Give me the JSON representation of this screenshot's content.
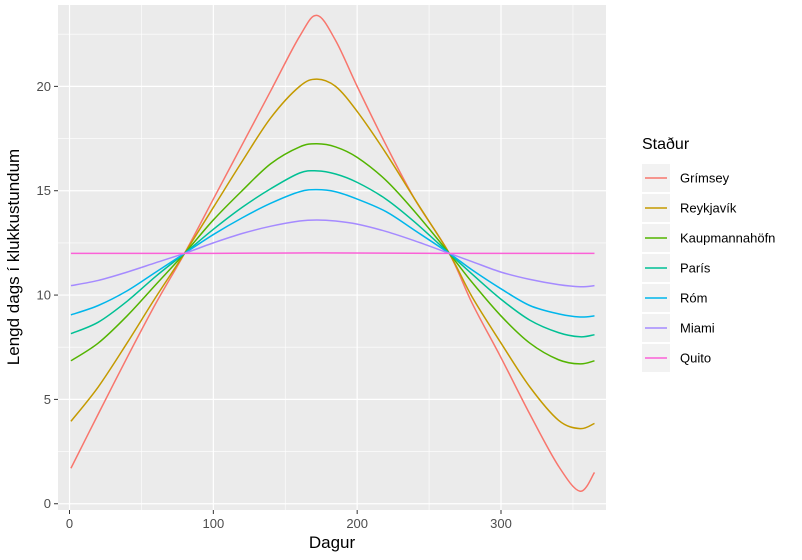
{
  "chart_data": {
    "type": "line",
    "xlabel": "Dagur",
    "ylabel": "Lengd dags í klukkustundum",
    "xlim": [
      -8,
      373
    ],
    "ylim": [
      -0.3,
      23.9
    ],
    "x_ticks": [
      0,
      100,
      200,
      300
    ],
    "y_ticks": [
      0,
      5,
      10,
      15,
      20
    ],
    "x_tick_labels": [
      "0",
      "100",
      "200",
      "300"
    ],
    "y_tick_labels": [
      "0",
      "5",
      "10",
      "15",
      "20"
    ],
    "grid": true,
    "legend": {
      "title": "Staður",
      "position": "right"
    },
    "series": [
      {
        "name": "Grímsey",
        "color": "#F8766D",
        "x": [
          1,
          20,
          40,
          60,
          80,
          100,
          120,
          140,
          160,
          172,
          185,
          200,
          220,
          240,
          264,
          280,
          300,
          320,
          340,
          355,
          365
        ],
        "y": [
          1.7,
          4.3,
          7.0,
          9.6,
          12.0,
          14.6,
          17.2,
          19.8,
          22.4,
          23.4,
          22.2,
          20.0,
          17.2,
          14.6,
          12.0,
          9.6,
          7.0,
          4.3,
          1.8,
          0.6,
          1.5
        ]
      },
      {
        "name": "Reykjavík",
        "color": "#C49A00",
        "x": [
          1,
          20,
          40,
          60,
          80,
          100,
          120,
          140,
          160,
          172,
          185,
          200,
          220,
          240,
          264,
          280,
          300,
          320,
          340,
          355,
          365
        ],
        "y": [
          3.95,
          5.6,
          7.7,
          9.9,
          12.0,
          14.2,
          16.4,
          18.5,
          20.0,
          20.35,
          20.0,
          18.8,
          16.8,
          14.6,
          12.0,
          9.9,
          7.7,
          5.6,
          4.0,
          3.6,
          3.85
        ]
      },
      {
        "name": "Kaupmannahöfn",
        "color": "#53B400",
        "x": [
          1,
          20,
          40,
          60,
          80,
          100,
          120,
          140,
          160,
          172,
          185,
          200,
          220,
          240,
          264,
          280,
          300,
          320,
          340,
          355,
          365
        ],
        "y": [
          6.85,
          7.7,
          9.0,
          10.5,
          12.0,
          13.6,
          15.0,
          16.3,
          17.1,
          17.25,
          17.1,
          16.6,
          15.5,
          14.0,
          12.0,
          10.6,
          9.0,
          7.7,
          6.9,
          6.7,
          6.85
        ]
      },
      {
        "name": "París",
        "color": "#00C094",
        "x": [
          1,
          20,
          40,
          60,
          80,
          100,
          120,
          140,
          160,
          172,
          185,
          200,
          220,
          240,
          264,
          280,
          300,
          320,
          340,
          355,
          365
        ],
        "y": [
          8.15,
          8.7,
          9.7,
          10.9,
          12.0,
          13.15,
          14.2,
          15.1,
          15.85,
          15.95,
          15.8,
          15.4,
          14.6,
          13.5,
          12.0,
          11.0,
          9.8,
          8.8,
          8.2,
          8.0,
          8.1
        ]
      },
      {
        "name": "Róm",
        "color": "#00B6EB",
        "x": [
          1,
          20,
          40,
          60,
          80,
          100,
          120,
          140,
          160,
          172,
          185,
          200,
          220,
          240,
          264,
          280,
          300,
          320,
          340,
          355,
          365
        ],
        "y": [
          9.05,
          9.5,
          10.2,
          11.1,
          12.0,
          12.9,
          13.7,
          14.4,
          14.95,
          15.05,
          14.95,
          14.6,
          14.0,
          13.1,
          12.0,
          11.2,
          10.3,
          9.5,
          9.1,
          8.95,
          9.0
        ]
      },
      {
        "name": "Miami",
        "color": "#A58AFF",
        "x": [
          1,
          20,
          40,
          60,
          80,
          100,
          120,
          140,
          160,
          172,
          185,
          200,
          220,
          240,
          264,
          280,
          300,
          320,
          340,
          355,
          365
        ],
        "y": [
          10.45,
          10.7,
          11.1,
          11.55,
          12.0,
          12.5,
          12.95,
          13.3,
          13.55,
          13.6,
          13.55,
          13.4,
          13.05,
          12.6,
          12.0,
          11.6,
          11.1,
          10.75,
          10.5,
          10.4,
          10.45
        ]
      },
      {
        "name": "Quito",
        "color": "#FB61D7",
        "x": [
          1,
          100,
          172,
          264,
          365
        ],
        "y": [
          12.0,
          12.0,
          12.02,
          12.0,
          12.0
        ]
      }
    ]
  }
}
